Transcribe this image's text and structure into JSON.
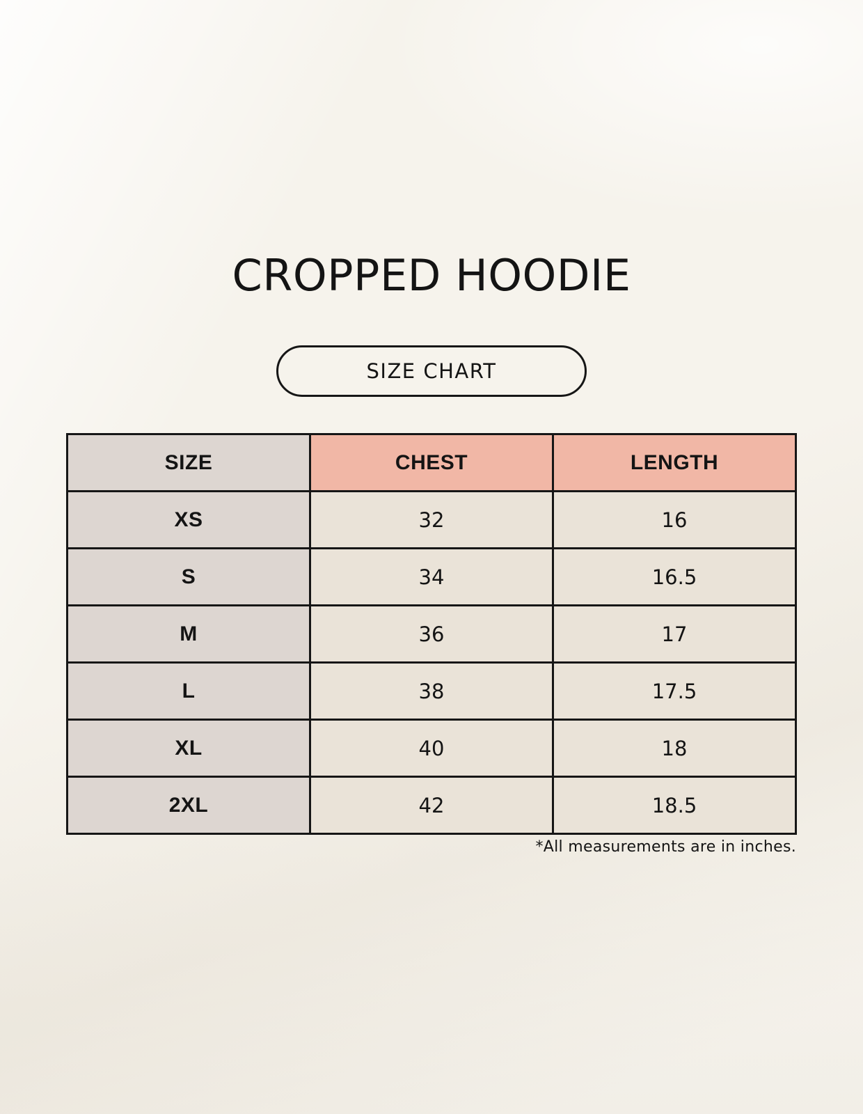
{
  "page": {
    "title": "CROPPED HOODIE",
    "size_chart_label": "SIZE CHART",
    "footnote": "*All measurements are in inches."
  },
  "table": {
    "columns": [
      "SIZE",
      "CHEST",
      "LENGTH"
    ],
    "rows": [
      {
        "size": "XS",
        "chest": "32",
        "length": "16"
      },
      {
        "size": "S",
        "chest": "34",
        "length": "16.5"
      },
      {
        "size": "M",
        "chest": "36",
        "length": "17"
      },
      {
        "size": "L",
        "chest": "38",
        "length": "17.5"
      },
      {
        "size": "XL",
        "chest": "40",
        "length": "18"
      },
      {
        "size": "2XL",
        "chest": "42",
        "length": "18.5"
      }
    ],
    "units_note": "inches"
  },
  "colors": {
    "background": "#f6f3ec",
    "size_column_bg": "#ddd6d1",
    "measure_header_bg": "#f1b7a6",
    "value_cell_bg": "#eae3d8",
    "border": "#161616",
    "text": "#141414"
  }
}
